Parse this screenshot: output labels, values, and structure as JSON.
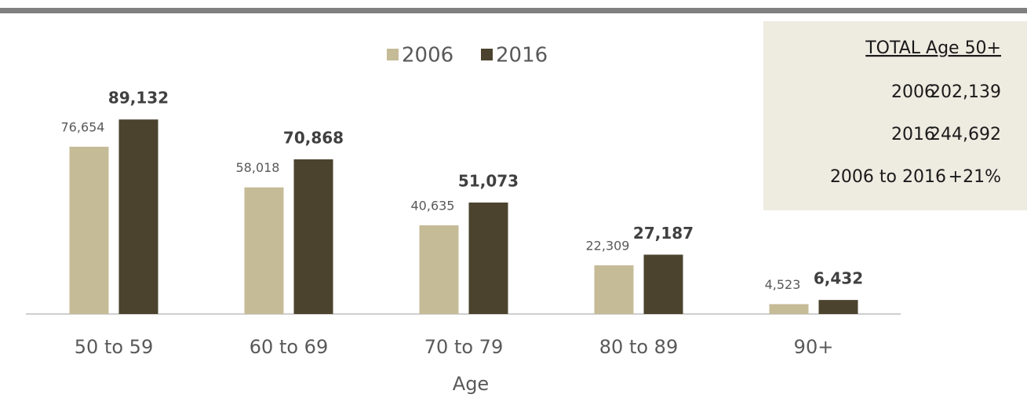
{
  "chart_data": {
    "type": "bar",
    "categories": [
      "50 to 59",
      "60 to 69",
      "70 to 79",
      "80 to 89",
      "90+"
    ],
    "series": [
      {
        "name": "2006",
        "color": "#c5bb97",
        "values": [
          76654,
          58018,
          40635,
          22309,
          4523
        ],
        "value_labels": [
          "76,654",
          "58,018",
          "40,635",
          "22,309",
          "4,523"
        ]
      },
      {
        "name": "2016",
        "color": "#4b432e",
        "values": [
          89132,
          70868,
          51073,
          27187,
          6432
        ],
        "value_labels": [
          "89,132",
          "70,868",
          "51,073",
          "27,187",
          "6,432"
        ]
      }
    ],
    "xlabel": "Age",
    "ylim": [
      0,
      100000
    ],
    "legend": "top",
    "summary": {
      "title": "TOTAL Age 50+",
      "rows": [
        [
          "2006",
          "202,139"
        ],
        [
          "2016",
          "244,692"
        ],
        [
          "2006 to 2016",
          "+21%"
        ]
      ]
    }
  }
}
